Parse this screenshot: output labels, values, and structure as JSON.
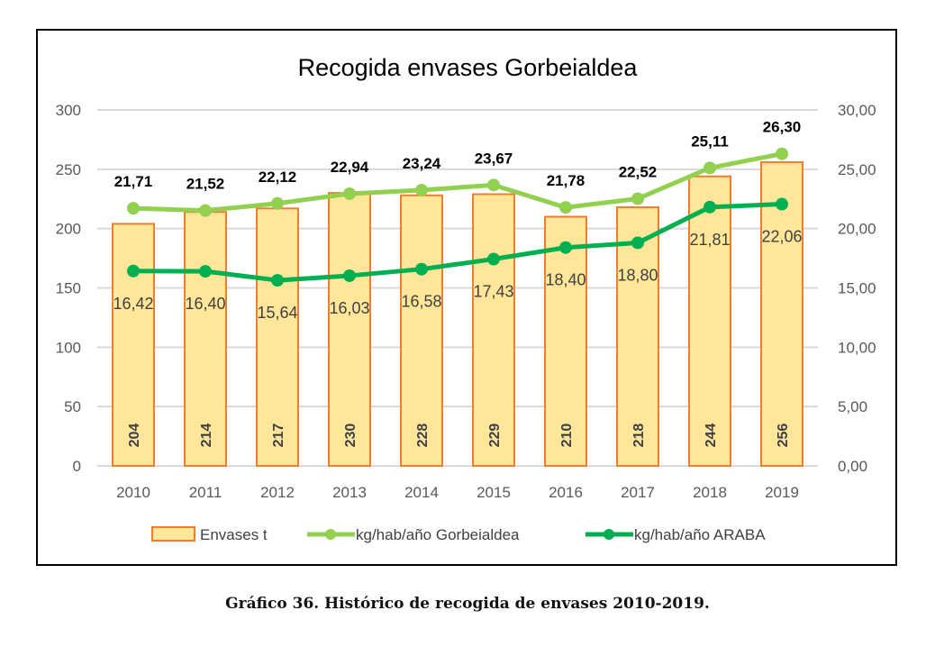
{
  "chart_data": {
    "type": "bar",
    "title": "Recogida envases Gorbeialdea",
    "categories": [
      "2010",
      "2011",
      "2012",
      "2013",
      "2014",
      "2015",
      "2016",
      "2017",
      "2018",
      "2019"
    ],
    "series": [
      {
        "name": "Envases t",
        "type": "bar",
        "axis": "left",
        "values": [
          204,
          214,
          217,
          230,
          228,
          229,
          210,
          218,
          244,
          256
        ],
        "labels": [
          "204",
          "214",
          "217",
          "230",
          "228",
          "229",
          "210",
          "218",
          "244",
          "256"
        ],
        "fill": "#FFE699",
        "stroke": "#ED7D31"
      },
      {
        "name": "kg/hab/año Gorbeialdea",
        "type": "line",
        "axis": "right",
        "values": [
          21.71,
          21.52,
          22.12,
          22.94,
          23.24,
          23.67,
          21.78,
          22.52,
          25.11,
          26.3
        ],
        "labels": [
          "21,71",
          "21,52",
          "22,12",
          "22,94",
          "23,24",
          "23,67",
          "21,78",
          "22,52",
          "25,11",
          "26,30"
        ],
        "color": "#92D050"
      },
      {
        "name": "kg/hab/año ARABA",
        "type": "line",
        "axis": "right",
        "values": [
          16.42,
          16.4,
          15.64,
          16.03,
          16.58,
          17.43,
          18.4,
          18.8,
          21.81,
          22.06
        ],
        "labels": [
          "16,42",
          "16,40",
          "15,64",
          "16,03",
          "16,58",
          "17,43",
          "18,40",
          "18,80",
          "21,81",
          "22,06"
        ],
        "color": "#00B050"
      }
    ],
    "y_left": {
      "range": [
        0,
        300
      ],
      "ticks": [
        "0",
        "50",
        "100",
        "150",
        "200",
        "250",
        "300"
      ]
    },
    "y_right": {
      "range": [
        0,
        30
      ],
      "ticks": [
        "0,00",
        "5,00",
        "10,00",
        "15,00",
        "20,00",
        "25,00",
        "30,00"
      ]
    },
    "grid": true,
    "legend": "bottom"
  },
  "caption": "Gráfico 36. Histórico de recogida de envases 2010-2019."
}
